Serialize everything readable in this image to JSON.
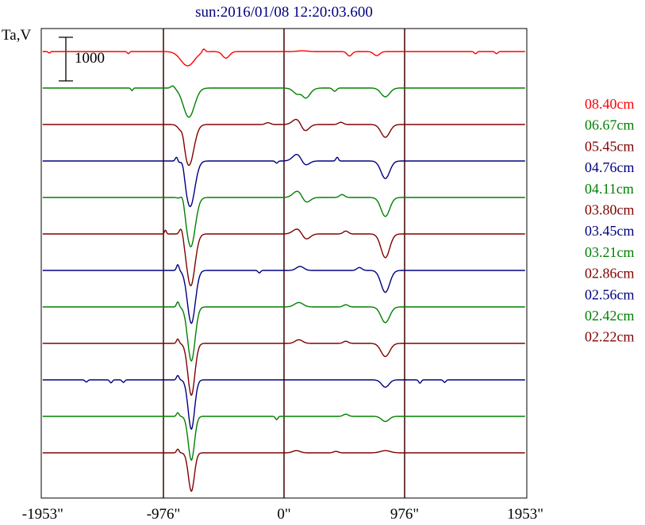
{
  "chart_data": {
    "type": "line",
    "title": "sun:2016/01/08 12:20:03.600",
    "ylabel": "Ta,V",
    "scale_bar_label": "1000",
    "x_ticks": [
      "-1953\"",
      "-976\"",
      "0\"",
      "976\"",
      "1953\""
    ],
    "x_tick_values": [
      -1953,
      -976,
      0,
      976,
      1953
    ],
    "xlim": [
      -1953,
      1953
    ],
    "vertical_lines_at": [
      -976,
      0,
      976
    ],
    "series_unit": "Ta",
    "series": [
      {
        "name": "08.40cm",
        "color": "#ff0000",
        "baseline": 0,
        "features": [
          [
            -780,
            -390,
            55
          ],
          [
            -470,
            -180,
            28
          ],
          [
            -1900,
            -40,
            8
          ],
          [
            -1260,
            -60,
            8
          ],
          [
            -650,
            90,
            12
          ],
          [
            150,
            -180,
            40
          ],
          [
            150,
            200,
            40
          ],
          [
            530,
            -120,
            20
          ],
          [
            750,
            -110,
            25
          ],
          [
            1550,
            -60,
            10
          ],
          [
            1720,
            -60,
            10
          ]
        ]
      },
      {
        "name": "06.67cm",
        "color": "#008000",
        "baseline": -1000,
        "features": [
          [
            -770,
            -800,
            45
          ],
          [
            -1230,
            -70,
            8
          ],
          [
            150,
            -420,
            45
          ],
          [
            140,
            220,
            25
          ],
          [
            410,
            -90,
            15
          ],
          [
            820,
            -240,
            35
          ],
          [
            -900,
            70,
            15
          ]
        ]
      },
      {
        "name": "05.45cm",
        "color": "#800000",
        "baseline": -2000,
        "features": [
          [
            -770,
            -1120,
            40
          ],
          [
            -820,
            200,
            15
          ],
          [
            120,
            230,
            40
          ],
          [
            160,
            -280,
            35
          ],
          [
            820,
            -350,
            35
          ],
          [
            460,
            60,
            20
          ],
          [
            -130,
            50,
            20
          ]
        ]
      },
      {
        "name": "04.76cm",
        "color": "#000080",
        "baseline": -3000,
        "features": [
          [
            -760,
            -1250,
            38
          ],
          [
            -820,
            220,
            15
          ],
          [
            -870,
            120,
            10
          ],
          [
            120,
            260,
            40
          ],
          [
            160,
            -220,
            35
          ],
          [
            820,
            -480,
            35
          ],
          [
            430,
            100,
            10
          ],
          [
            -60,
            -60,
            10
          ]
        ]
      },
      {
        "name": "04.11cm",
        "color": "#008000",
        "baseline": -4000,
        "features": [
          [
            -755,
            -1350,
            36
          ],
          [
            -820,
            200,
            15
          ],
          [
            120,
            220,
            40
          ],
          [
            170,
            -200,
            35
          ],
          [
            820,
            -520,
            35
          ],
          [
            470,
            80,
            20
          ]
        ]
      },
      {
        "name": "03.80cm",
        "color": "#800000",
        "baseline": -5000,
        "features": [
          [
            -755,
            -1420,
            34
          ],
          [
            -830,
            230,
            15
          ],
          [
            120,
            180,
            40
          ],
          [
            170,
            -200,
            35
          ],
          [
            820,
            -650,
            35
          ],
          [
            500,
            80,
            20
          ],
          [
            -960,
            100,
            8
          ]
        ]
      },
      {
        "name": "03.45cm",
        "color": "#000080",
        "baseline": -6000,
        "features": [
          [
            -750,
            -1450,
            32
          ],
          [
            -860,
            160,
            10
          ],
          [
            -200,
            -70,
            10
          ],
          [
            130,
            110,
            30
          ],
          [
            820,
            -600,
            35
          ],
          [
            610,
            80,
            20
          ]
        ]
      },
      {
        "name": "03.21cm",
        "color": "#008000",
        "baseline": -7000,
        "features": [
          [
            -750,
            -1480,
            30
          ],
          [
            -860,
            140,
            10
          ],
          [
            120,
            120,
            35
          ],
          [
            820,
            -430,
            35
          ],
          [
            500,
            60,
            20
          ]
        ]
      },
      {
        "name": "02.86cm",
        "color": "#800000",
        "baseline": -8000,
        "features": [
          [
            -750,
            -1420,
            28
          ],
          [
            -860,
            120,
            10
          ],
          [
            120,
            100,
            30
          ],
          [
            820,
            -360,
            35
          ],
          [
            500,
            60,
            20
          ]
        ]
      },
      {
        "name": "02.56cm",
        "color": "#000080",
        "baseline": -9000,
        "features": [
          [
            -750,
            -1350,
            26
          ],
          [
            -860,
            120,
            10
          ],
          [
            -1400,
            -80,
            10
          ],
          [
            -1300,
            -70,
            10
          ],
          [
            -1600,
            -60,
            10
          ],
          [
            820,
            -200,
            30
          ],
          [
            1100,
            -90,
            10
          ],
          [
            1300,
            -70,
            10
          ]
        ]
      },
      {
        "name": "02.42cm",
        "color": "#008000",
        "baseline": -10000,
        "features": [
          [
            -750,
            -1200,
            25
          ],
          [
            -860,
            100,
            10
          ],
          [
            -60,
            -90,
            10
          ],
          [
            820,
            -140,
            30
          ],
          [
            500,
            60,
            20
          ]
        ]
      },
      {
        "name": "02.22cm",
        "color": "#800000",
        "baseline": -11000,
        "features": [
          [
            -750,
            -1050,
            24
          ],
          [
            -860,
            100,
            10
          ],
          [
            100,
            60,
            30
          ],
          [
            820,
            60,
            40
          ],
          [
            420,
            40,
            20
          ]
        ]
      }
    ],
    "legend_position": "right",
    "grid": false
  }
}
